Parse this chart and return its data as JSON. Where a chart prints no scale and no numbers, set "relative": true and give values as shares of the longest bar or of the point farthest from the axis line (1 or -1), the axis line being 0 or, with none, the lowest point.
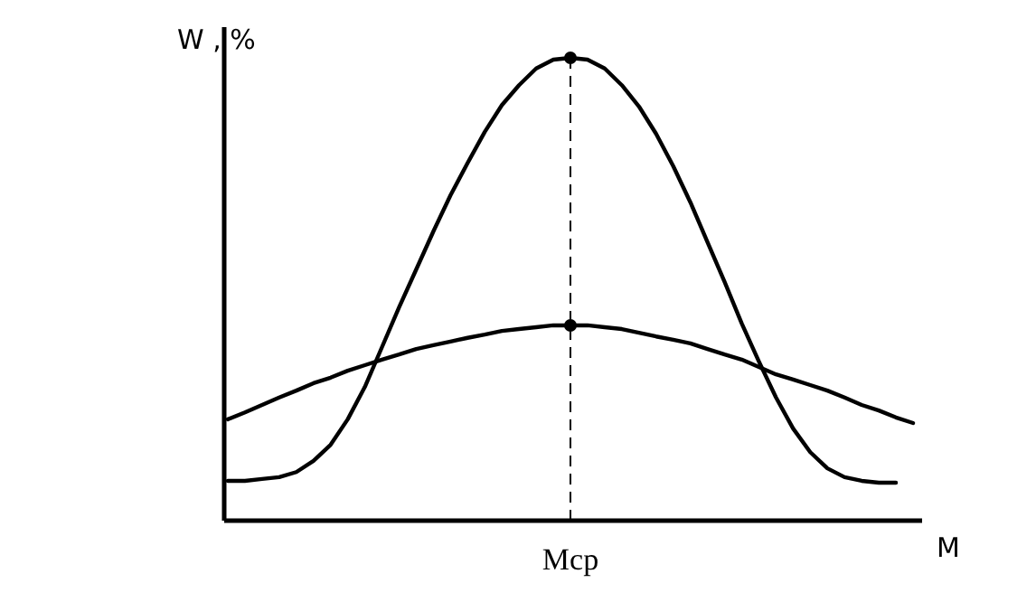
{
  "chart_data": {
    "type": "line",
    "relative": true,
    "xlabel": "M",
    "ylabel": "W , %",
    "tick_labels": false,
    "grid": false,
    "marker": "none",
    "line_style": "solid",
    "annotations": [
      "Мср"
    ],
    "categories": [
      null,
      null,
      null,
      null,
      null,
      null,
      null,
      null,
      null,
      null,
      null,
      null,
      null,
      null,
      null,
      null,
      null,
      null,
      null,
      null,
      null,
      null,
      null,
      null,
      null,
      null,
      null,
      null,
      null,
      null,
      null,
      null,
      null,
      null,
      null,
      null,
      null,
      null,
      null,
      null,
      null
    ],
    "series": [
      {
        "color": "#000000",
        "values": [
          0.086,
          0.086,
          0.09,
          0.094,
          0.105,
          0.129,
          0.164,
          0.219,
          0.289,
          0.375,
          0.461,
          0.543,
          0.625,
          0.703,
          0.773,
          0.84,
          0.898,
          0.941,
          0.977,
          0.996,
          1,
          0.996,
          0.977,
          0.941,
          0.895,
          0.836,
          0.766,
          0.688,
          0.602,
          0.516,
          0.426,
          0.344,
          0.266,
          0.199,
          0.148,
          0.113,
          0.094,
          0.086,
          0.082,
          0.082,
          null
        ]
      },
      {
        "color": "#000000",
        "values": [
          0.219,
          0.234,
          0.25,
          0.266,
          0.281,
          0.297,
          0.309,
          0.324,
          0.336,
          0.348,
          0.359,
          0.371,
          0.379,
          0.387,
          0.395,
          0.402,
          0.41,
          0.414,
          0.418,
          0.422,
          0.422,
          0.422,
          0.418,
          0.414,
          0.406,
          0.398,
          0.391,
          0.383,
          0.371,
          0.359,
          0.348,
          0.332,
          0.316,
          0.305,
          0.293,
          0.281,
          0.266,
          0.25,
          0.238,
          0.223,
          0.211
        ]
      }
    ]
  }
}
